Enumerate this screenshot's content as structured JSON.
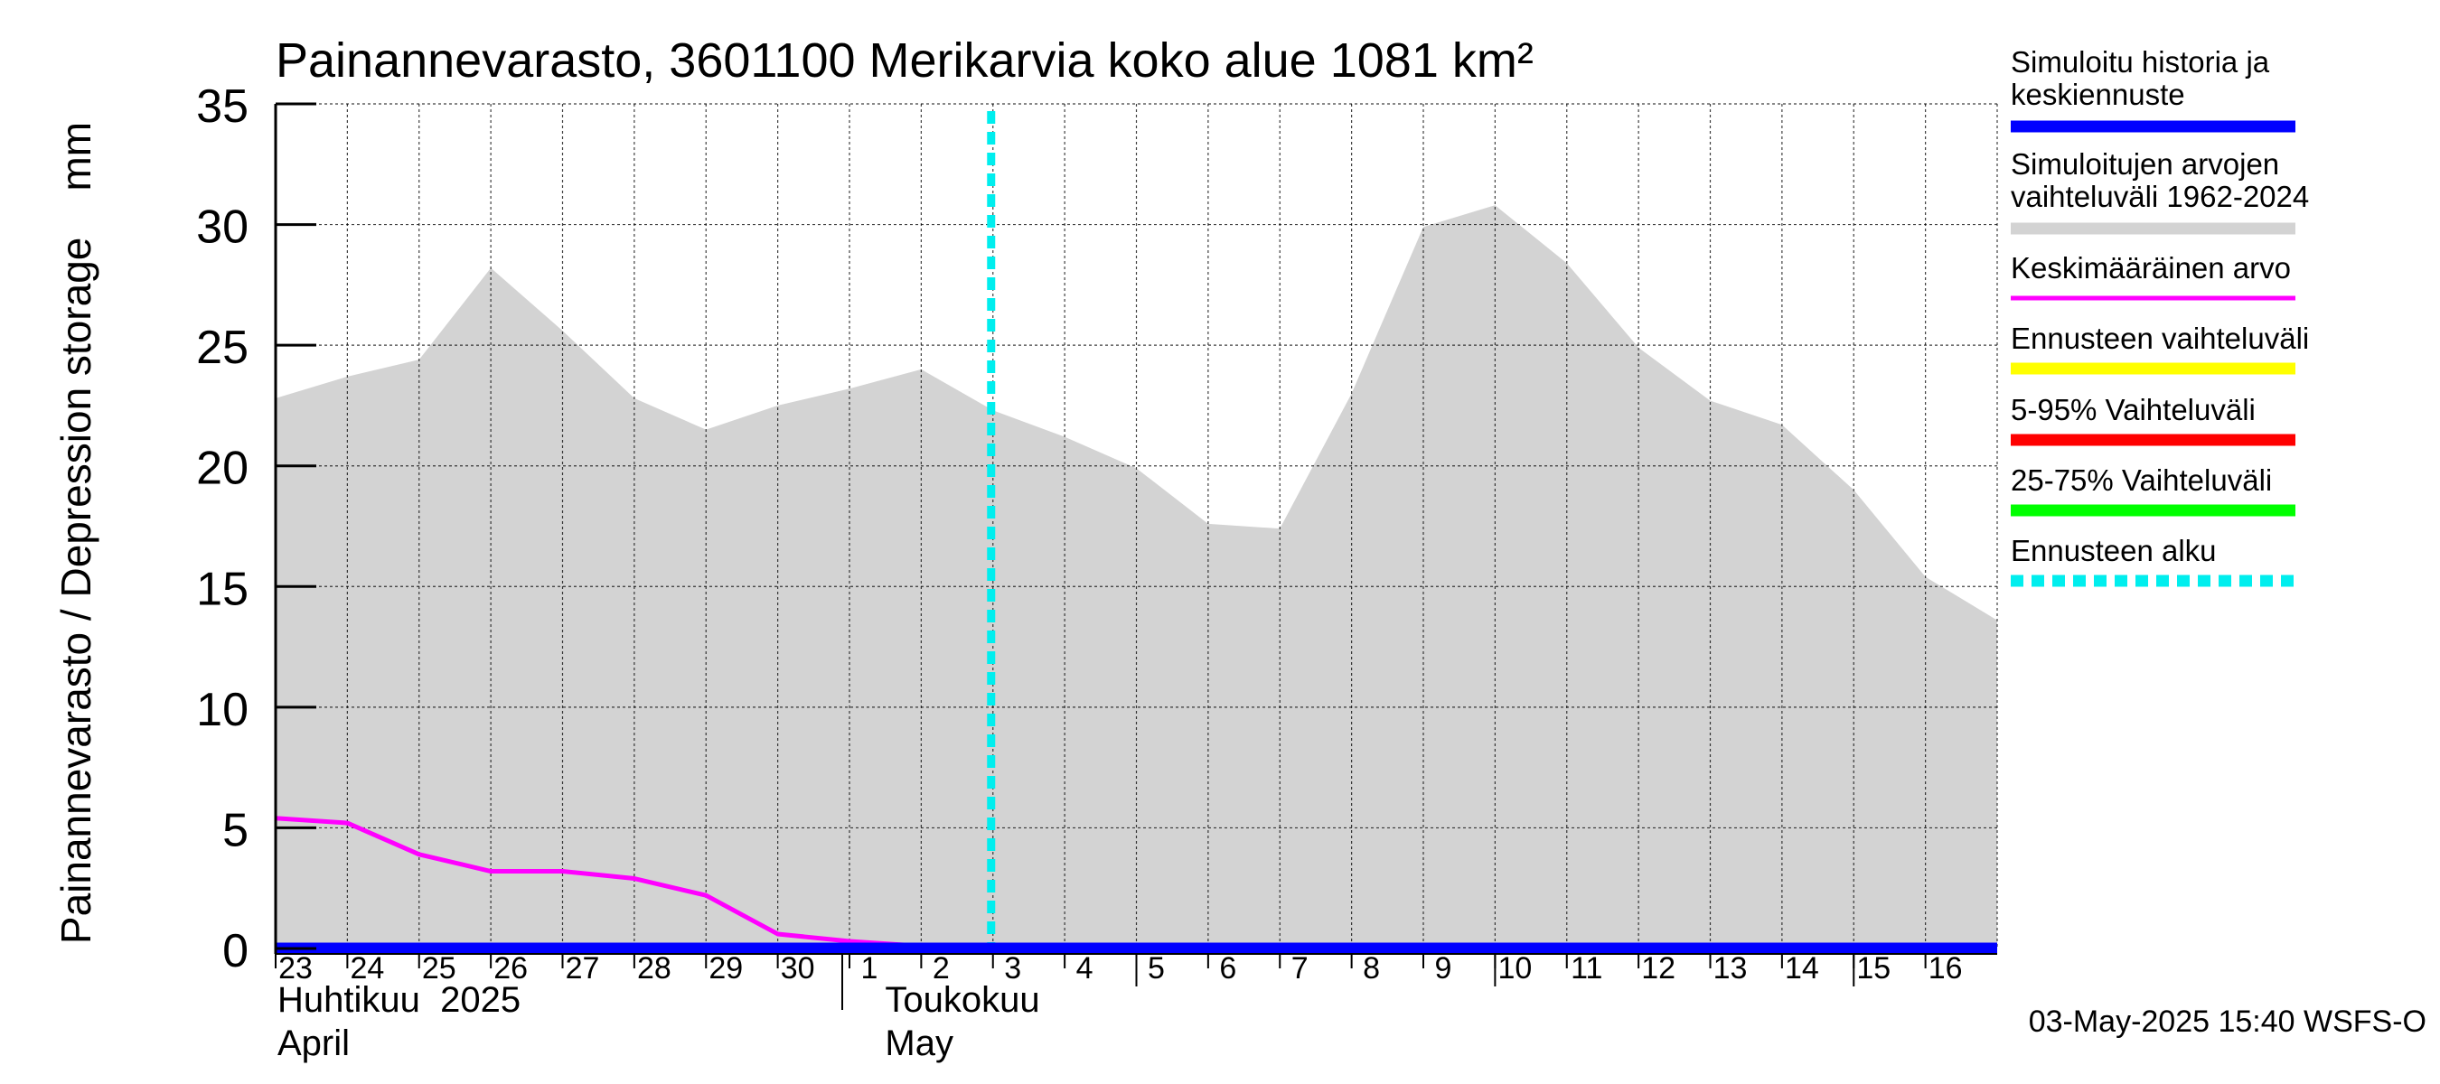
{
  "chart_data": {
    "type": "area",
    "title": "Painannevarasto, 3601100 Merikarvia koko alue 1081 km²",
    "ylabel": "Painannevarasto / Depression storage    mm",
    "ylim": [
      0,
      35
    ],
    "yticks": [
      0,
      5,
      10,
      15,
      20,
      25,
      30,
      35
    ],
    "grid": true,
    "legend_position": "right",
    "x_tick_labels": [
      "23",
      "24",
      "25",
      "26",
      "27",
      "28",
      "29",
      "30",
      "1",
      "2",
      "3",
      "4",
      "5",
      "6",
      "7",
      "8",
      "9",
      "10",
      "11",
      "12",
      "13",
      "14",
      "15",
      "16"
    ],
    "month_labels": [
      {
        "fi": "Huhtikuu  2025",
        "en": "April"
      },
      {
        "fi": "Toukokuu",
        "en": "May"
      }
    ],
    "x": [
      "2025-04-23",
      "2025-04-24",
      "2025-04-25",
      "2025-04-26",
      "2025-04-27",
      "2025-04-28",
      "2025-04-29",
      "2025-04-30",
      "2025-05-01",
      "2025-05-02",
      "2025-05-03",
      "2025-05-04",
      "2025-05-05",
      "2025-05-06",
      "2025-05-07",
      "2025-05-08",
      "2025-05-09",
      "2025-05-10",
      "2025-05-11",
      "2025-05-12",
      "2025-05-13",
      "2025-05-14",
      "2025-05-15",
      "2025-05-16",
      "2025-05-17"
    ],
    "series": [
      {
        "name": "Simuloitujen arvojen vaihteluväli 1962-2024",
        "kind": "range",
        "color": "#d3d3d3",
        "upper": [
          22.8,
          23.7,
          24.4,
          28.2,
          25.6,
          22.8,
          21.5,
          22.5,
          23.2,
          24.0,
          22.3,
          21.2,
          19.9,
          17.6,
          17.4,
          23.0,
          29.9,
          30.8,
          28.4,
          24.9,
          22.7,
          21.7,
          19.0,
          15.4,
          13.6
        ],
        "lower": [
          0,
          0,
          0,
          0,
          0,
          0,
          0,
          0,
          0,
          0,
          0,
          0,
          0,
          0,
          0,
          0,
          0,
          0,
          0,
          0,
          0,
          0,
          0,
          0,
          0
        ]
      },
      {
        "name": "Keskimääräinen arvo",
        "color": "#ff00ff",
        "values": [
          5.4,
          5.2,
          3.9,
          3.2,
          3.2,
          2.9,
          2.2,
          0.6,
          0.3,
          0.1,
          0.05,
          0.05,
          0.05,
          0.05,
          0.05,
          0.05,
          0.05,
          0.05,
          0.05,
          0.05,
          0.05,
          0.05,
          0.05,
          0.05,
          0.05
        ]
      },
      {
        "name": "Simuloitu historia ja keskiennuste",
        "color": "#0000ff",
        "values": [
          0,
          0,
          0,
          0,
          0,
          0,
          0,
          0,
          0,
          0,
          0,
          0,
          0,
          0,
          0,
          0,
          0,
          0,
          0,
          0,
          0,
          0,
          0,
          0,
          0
        ]
      }
    ],
    "forecast_start": "2025-05-03",
    "legend": [
      {
        "label": "Simuloitu historia ja keskiennuste",
        "color": "#0000ff",
        "style": "solid"
      },
      {
        "label": "Simuloitujen arvojen vaihteluväli 1962-2024",
        "color": "#d3d3d3",
        "style": "solid"
      },
      {
        "label": "Keskimääräinen arvo",
        "color": "#ff00ff",
        "style": "solid"
      },
      {
        "label": "Ennusteen vaihteluväli",
        "color": "#ffff00",
        "style": "solid"
      },
      {
        "label": "5-95% Vaihteluväli",
        "color": "#ff0000",
        "style": "solid"
      },
      {
        "label": "25-75% Vaihteluväli",
        "color": "#00ff00",
        "style": "solid"
      },
      {
        "label": "Ennusteen alku",
        "color": "#00eeee",
        "style": "dashed"
      }
    ],
    "footer": "03-May-2025 15:40 WSFS-O"
  }
}
